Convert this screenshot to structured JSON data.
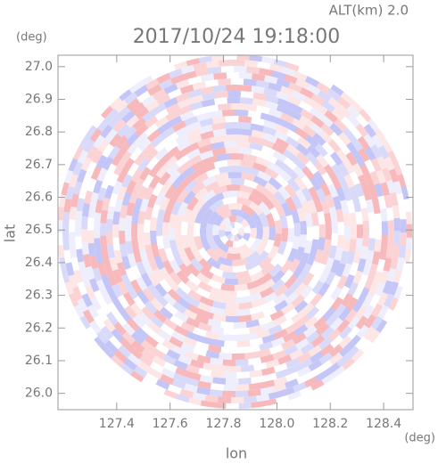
{
  "chart_data": {
    "type": "radar-ppi",
    "title": "2017/10/24 19:18:00",
    "altitude_label": "ALT(km) 2.0",
    "y_unit": "(deg)",
    "x_unit": "(deg)",
    "y_label": "lat",
    "x_label": "lon",
    "xlim": [
      127.18,
      128.51
    ],
    "ylim": [
      25.95,
      27.035
    ],
    "xticks": [
      127.4,
      127.6,
      127.8,
      {
        "value": 128,
        "label": "128.0"
      },
      128.2,
      128.4
    ],
    "yticks": [
      {
        "value": 26,
        "label": "26.0"
      },
      26.1,
      26.2,
      26.3,
      26.4,
      26.5,
      26.6,
      26.7,
      26.8,
      26.9,
      {
        "value": 27,
        "label": "27.0"
      }
    ]
  }
}
